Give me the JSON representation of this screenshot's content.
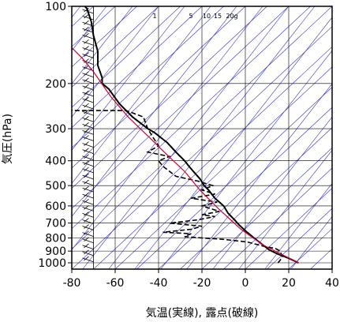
{
  "chart_data": {
    "type": "line",
    "title": "",
    "xlabel": "気温(実線), 露点(破線)",
    "ylabel": "気圧(hPa)",
    "x_ticks": [
      -80,
      -60,
      -40,
      -20,
      0,
      20,
      40
    ],
    "x_tick_labels": [
      "-80",
      "-60",
      "-40",
      "-20",
      "0",
      "20",
      "40"
    ],
    "y_ticks": [
      100,
      200,
      300,
      400,
      500,
      600,
      700,
      800,
      900,
      1000
    ],
    "y_tick_labels": [
      "100",
      "200",
      "300",
      "400",
      "500",
      "600",
      "700",
      "800",
      "900",
      "1000"
    ],
    "xlim": [
      -80,
      40
    ],
    "ylim": [
      1050,
      100
    ],
    "y_scale": "log",
    "mixing_ratio_labels": [
      "1",
      "5",
      "10",
      "15",
      "20g"
    ],
    "colors": {
      "temperature": "#000000",
      "dewpoint": "#000000",
      "parcel": "#cc0033",
      "isotherm": "#3333cc",
      "grid": "#000000"
    },
    "series": [
      {
        "style": "solid",
        "points": [
          [
            24.5,
            1000
          ],
          [
            20,
            960
          ],
          [
            15,
            925
          ],
          [
            11,
            890
          ],
          [
            8,
            850
          ],
          [
            4,
            800
          ],
          [
            0,
            750
          ],
          [
            -3,
            710
          ],
          [
            -5,
            680
          ],
          [
            -8,
            640
          ],
          [
            -10,
            600
          ],
          [
            -14,
            560
          ],
          [
            -17,
            520
          ],
          [
            -19,
            500
          ],
          [
            -21,
            470
          ],
          [
            -24,
            440
          ],
          [
            -26,
            420
          ],
          [
            -28,
            400
          ],
          [
            -32,
            370
          ],
          [
            -36,
            340
          ],
          [
            -42,
            310
          ],
          [
            -45,
            300
          ],
          [
            -52,
            270
          ],
          [
            -58,
            240
          ],
          [
            -63,
            210
          ],
          [
            -66,
            200
          ],
          [
            -66,
            190
          ],
          [
            -68,
            170
          ],
          [
            -68,
            150
          ],
          [
            -70,
            130
          ],
          [
            -71,
            115
          ],
          [
            -73,
            102
          ],
          [
            -74,
            100
          ]
        ]
      },
      {
        "style": "dashed",
        "points": [
          [
            15,
            1000
          ],
          [
            16,
            980
          ],
          [
            17,
            940
          ],
          [
            16,
            900
          ],
          [
            14,
            880
          ],
          [
            8,
            860
          ],
          [
            1,
            830
          ],
          [
            -10,
            810
          ],
          [
            -20,
            800
          ],
          [
            -28,
            790
          ],
          [
            -25,
            770
          ],
          [
            -38,
            760
          ],
          [
            -25,
            740
          ],
          [
            -20,
            720
          ],
          [
            -35,
            700
          ],
          [
            -22,
            680
          ],
          [
            -14,
            660
          ],
          [
            -20,
            650
          ],
          [
            -12,
            630
          ],
          [
            -20,
            600
          ],
          [
            -13,
            580
          ],
          [
            -25,
            560
          ],
          [
            -14,
            540
          ],
          [
            -20,
            520
          ],
          [
            -15,
            500
          ],
          [
            -22,
            480
          ],
          [
            -32,
            460
          ],
          [
            -38,
            420
          ],
          [
            -40,
            400
          ],
          [
            -35,
            385
          ],
          [
            -45,
            370
          ],
          [
            -40,
            350
          ],
          [
            -43,
            320
          ],
          [
            -45,
            300
          ],
          [
            -47,
            270
          ],
          [
            -55,
            255
          ],
          [
            -80,
            255
          ]
        ]
      },
      {
        "style": "parcel",
        "points": [
          [
            24.5,
            1000
          ],
          [
            8,
            850
          ],
          [
            -2,
            740
          ],
          [
            -12,
            620
          ],
          [
            -21,
            520
          ],
          [
            -28,
            440
          ],
          [
            -36,
            380
          ],
          [
            -45,
            320
          ],
          [
            -54,
            270
          ],
          [
            -62,
            225
          ],
          [
            -70,
            180
          ],
          [
            -75,
            160
          ],
          [
            -80,
            145
          ]
        ]
      }
    ],
    "wind_barbs_column_x": -70
  }
}
